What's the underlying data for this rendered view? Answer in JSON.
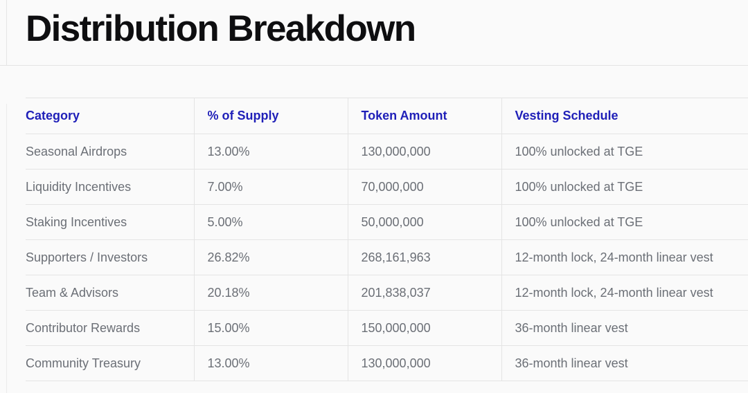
{
  "page": {
    "title": "Distribution Breakdown"
  },
  "table": {
    "headers": [
      "Category",
      "% of Supply",
      "Token Amount",
      "Vesting Schedule"
    ],
    "rows": [
      [
        "Seasonal Airdrops",
        "13.00%",
        "130,000,000",
        "100% unlocked at TGE"
      ],
      [
        "Liquidity Incentives",
        "7.00%",
        "70,000,000",
        "100% unlocked at TGE"
      ],
      [
        "Staking Incentives",
        "5.00%",
        "50,000,000",
        "100% unlocked at TGE"
      ],
      [
        "Supporters / Investors",
        "26.82%",
        "268,161,963",
        "12-month lock, 24-month linear vest"
      ],
      [
        "Team & Advisors",
        "20.18%",
        "201,838,037",
        "12-month lock, 24-month linear vest"
      ],
      [
        "Contributor Rewards",
        "15.00%",
        "150,000,000",
        "36-month linear vest"
      ],
      [
        "Community Treasury",
        "13.00%",
        "130,000,000",
        "36-month linear vest"
      ]
    ]
  },
  "colors": {
    "header_text": "#1f1fb8",
    "title_text": "#0e0e10",
    "cell_text": "#6b6f76",
    "divider": "#e4e4e4",
    "background": "#fafafa"
  }
}
